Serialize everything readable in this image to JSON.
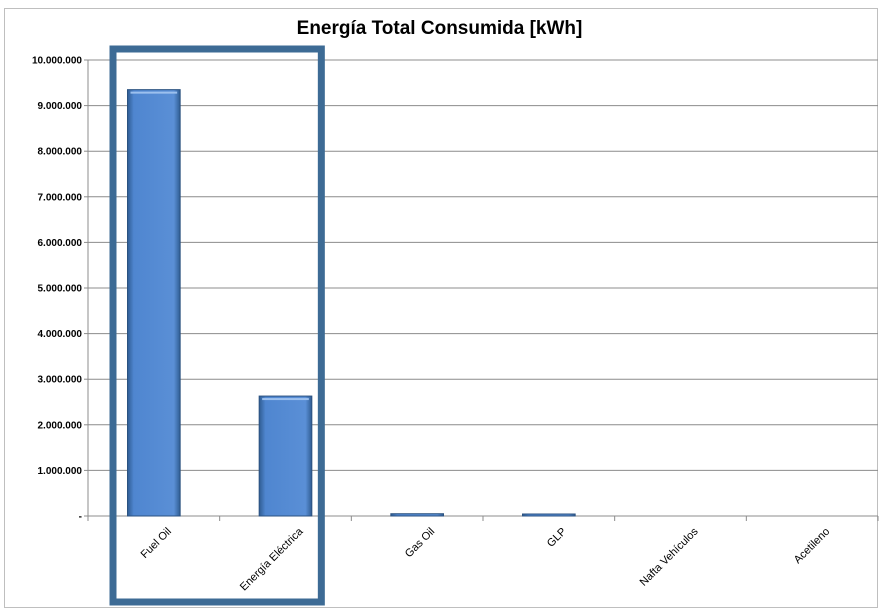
{
  "chart_data": {
    "type": "bar",
    "title": "Energía Total Consumida [kWh]",
    "categories": [
      "Fuel Oil",
      "Energía Eléctrica",
      "Gas Oil",
      "GLP",
      "Nafta Vehículos",
      "Acetileno"
    ],
    "values": [
      9350000,
      2630000,
      50000,
      30000,
      0,
      0
    ],
    "ylim": [
      0,
      10000000
    ],
    "yticks": [
      0,
      1000000,
      2000000,
      3000000,
      4000000,
      5000000,
      6000000,
      7000000,
      8000000,
      9000000,
      10000000
    ],
    "ytick_labels": [
      "-",
      "1.000.000",
      "2.000.000",
      "3.000.000",
      "4.000.000",
      "5.000.000",
      "6.000.000",
      "7.000.000",
      "8.000.000",
      "9.000.000",
      "10.000.000"
    ],
    "grid": true,
    "legend": "none",
    "bar_color": "#4f86d0",
    "highlight_color": "#3d6b95",
    "highlight_categories": [
      "Fuel Oil",
      "Energía Eléctrica"
    ]
  }
}
